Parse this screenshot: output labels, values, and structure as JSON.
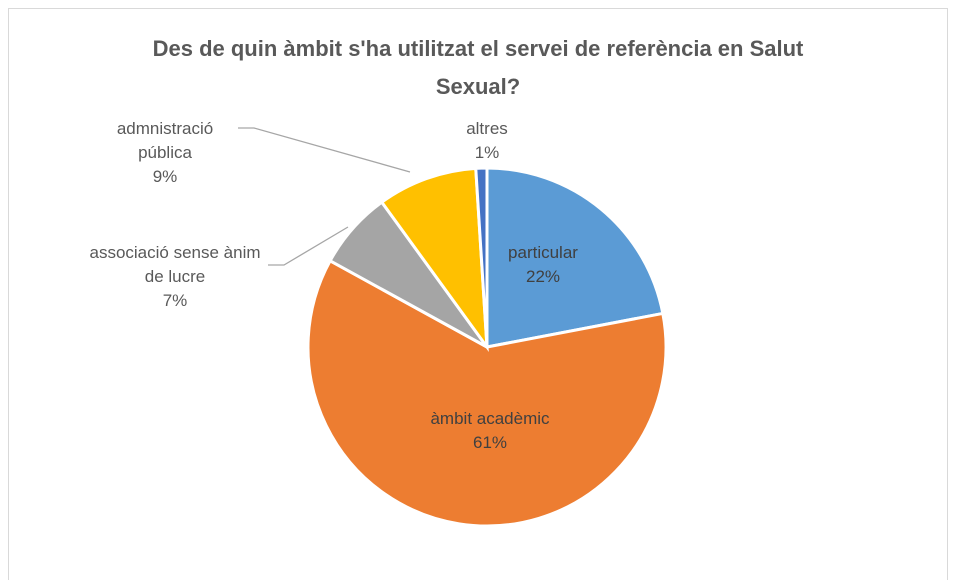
{
  "chart_data": {
    "type": "pie",
    "title": "Des de quin àmbit s'ha utilitzat el servei de referència en Salut Sexual?",
    "categories": [
      "particular",
      "àmbit acadèmic",
      "associació sense ànim de lucre",
      "admnistració pública",
      "altres"
    ],
    "values": [
      22,
      61,
      7,
      9,
      1
    ],
    "value_labels": [
      "22%",
      "61%",
      "7%",
      "9%",
      "1%"
    ],
    "colors": [
      "#5b9bd5",
      "#ed7d31",
      "#a5a5a5",
      "#ffc000",
      "#4472c4"
    ]
  }
}
